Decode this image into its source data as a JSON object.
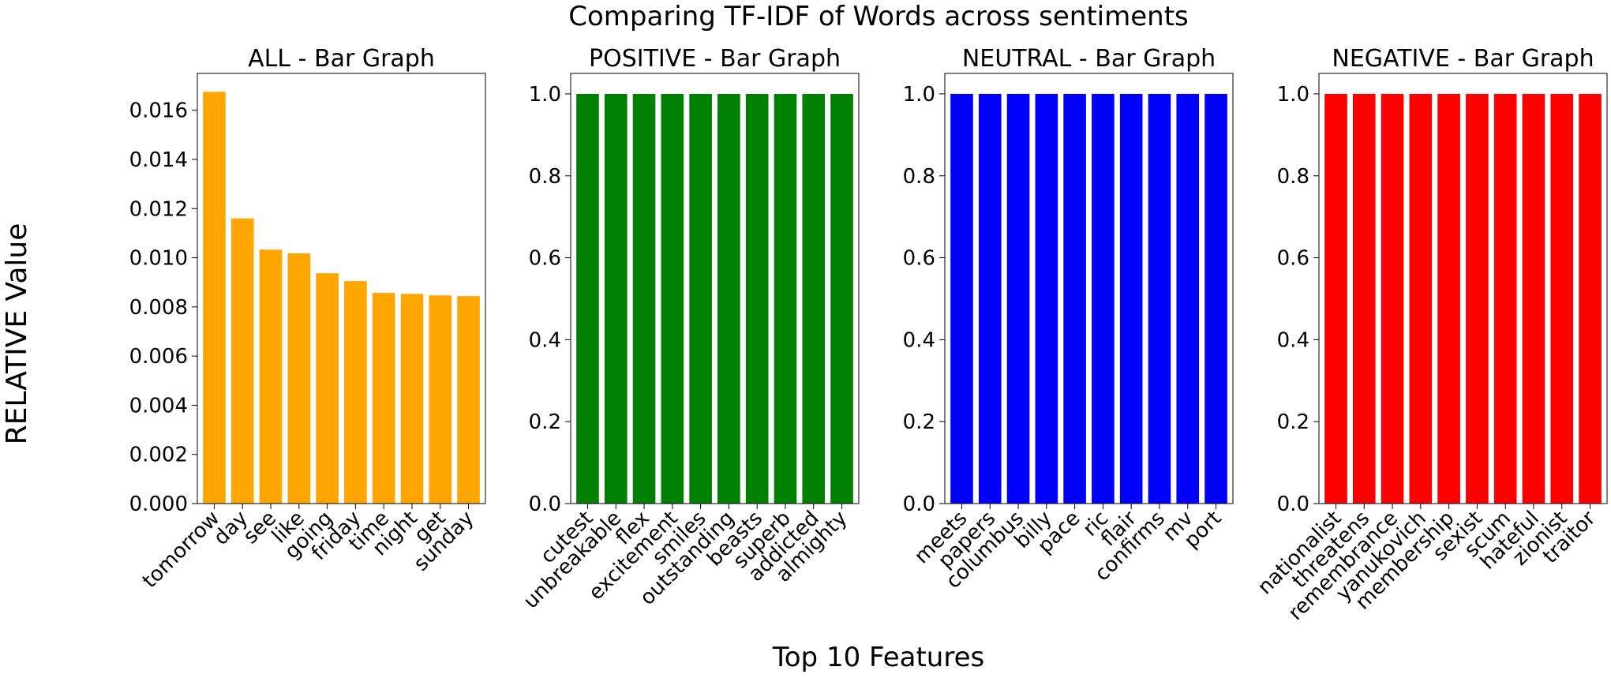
{
  "figure": {
    "suptitle": "Comparing TF-IDF of Words across sentiments",
    "ylabel": "RELATIVE Value",
    "xlabel": "Top 10 Features"
  },
  "chart_data": [
    {
      "type": "bar",
      "title": "ALL - Bar Graph",
      "color": "#ffa500",
      "categories": [
        "tomorrow",
        "day",
        "see",
        "like",
        "going",
        "friday",
        "time",
        "night",
        "get",
        "sunday"
      ],
      "values": [
        0.01675,
        0.0116,
        0.01033,
        0.01018,
        0.00937,
        0.00905,
        0.00857,
        0.00853,
        0.00847,
        0.00844
      ],
      "ylim": [
        0,
        0.0175
      ],
      "yticks": [
        "0.000",
        "0.002",
        "0.004",
        "0.006",
        "0.008",
        "0.010",
        "0.012",
        "0.014",
        "0.016"
      ]
    },
    {
      "type": "bar",
      "title": "POSITIVE - Bar Graph",
      "color": "#008000",
      "categories": [
        "cutest",
        "unbreakable",
        "flex",
        "excitement",
        "smiles",
        "outstanding",
        "beasts",
        "superb",
        "addicted",
        "almighty"
      ],
      "values": [
        1,
        1,
        1,
        1,
        1,
        1,
        1,
        1,
        1,
        1
      ],
      "ylim": [
        0,
        1.05
      ],
      "yticks": [
        "0.0",
        "0.2",
        "0.4",
        "0.6",
        "0.8",
        "1.0"
      ]
    },
    {
      "type": "bar",
      "title": "NEUTRAL - Bar Graph",
      "color": "#0000ff",
      "categories": [
        "meets",
        "papers",
        "columbus",
        "billy",
        "pace",
        "ric",
        "flair",
        "confirms",
        "mv",
        "port"
      ],
      "values": [
        1,
        1,
        1,
        1,
        1,
        1,
        1,
        1,
        1,
        1
      ],
      "ylim": [
        0,
        1.05
      ],
      "yticks": [
        "0.0",
        "0.2",
        "0.4",
        "0.6",
        "0.8",
        "1.0"
      ]
    },
    {
      "type": "bar",
      "title": "NEGATIVE - Bar Graph",
      "color": "#ff0000",
      "categories": [
        "nationalist",
        "threatens",
        "remembrance",
        "yanukovich",
        "membership",
        "sexist",
        "scum",
        "hateful",
        "zionist",
        "traitor"
      ],
      "values": [
        1,
        1,
        1,
        1,
        1,
        1,
        1,
        1,
        1,
        1
      ],
      "ylim": [
        0,
        1.05
      ],
      "yticks": [
        "0.0",
        "0.2",
        "0.4",
        "0.6",
        "0.8",
        "1.0"
      ]
    }
  ]
}
